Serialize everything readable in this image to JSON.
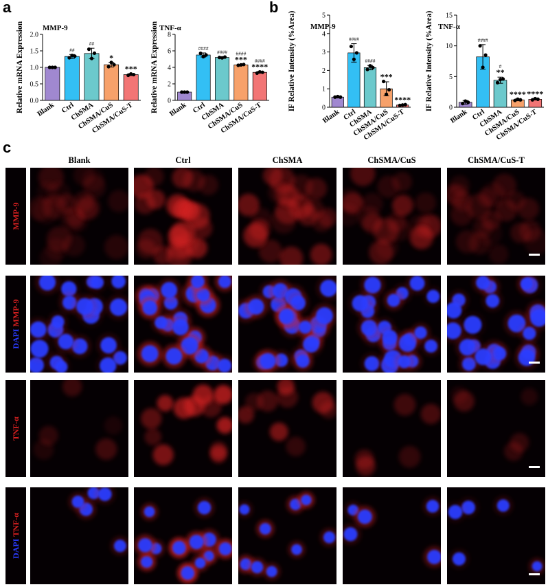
{
  "panel_letters": {
    "a": "a",
    "b": "b",
    "c": "c"
  },
  "colors": {
    "Blank": "#a088d0",
    "Ctrl": "#33bff4",
    "ChSMA": "#6cc9cc",
    "ChSMA/CuS": "#f7a16a",
    "ChSMA/CuS-T": "#f27575",
    "micro_red": "#d62020",
    "micro_blue": "#2a3cff"
  },
  "chart_data": [
    {
      "type": "bar",
      "panel": "a",
      "title": "MMP-9",
      "ylabel": "Relative mRNA Expression",
      "categories": [
        "Blank",
        "Ctrl",
        "ChSMA",
        "ChSMA/CuS",
        "ChSMA/CuS-T"
      ],
      "values": [
        1.0,
        1.33,
        1.42,
        1.08,
        0.78
      ],
      "errors": [
        0.0,
        0.06,
        0.16,
        0.07,
        0.03
      ],
      "points": [
        [
          1.0,
          1.0,
          1.0
        ],
        [
          1.29,
          1.36,
          1.34
        ],
        [
          1.55,
          1.27,
          1.43
        ],
        [
          1.02,
          1.15,
          1.08
        ],
        [
          0.76,
          0.8,
          0.78
        ]
      ],
      "top_labels": [
        "",
        "",
        "",
        "*",
        "***"
      ],
      "hash_labels": [
        "",
        "##",
        "##",
        "",
        ""
      ],
      "ylim": [
        0,
        2.0
      ],
      "ticks": [
        0.0,
        0.5,
        1.0,
        1.5,
        2.0
      ],
      "tick_labels": [
        "0.0",
        "0.5",
        "1.0",
        "1.5",
        "2.0"
      ]
    },
    {
      "type": "bar",
      "panel": "a",
      "title": "TNF-α",
      "ylabel": "Relative mRNA Expression",
      "categories": [
        "Blank",
        "Ctrl",
        "ChSMA",
        "ChSMA/CuS",
        "ChSMA/CuS-T"
      ],
      "values": [
        1.0,
        5.5,
        5.2,
        4.3,
        3.4
      ],
      "errors": [
        0.0,
        0.25,
        0.1,
        0.06,
        0.1
      ],
      "points": [
        [
          1.0,
          1.0,
          1.0
        ],
        [
          5.7,
          5.3,
          5.5
        ],
        [
          5.2,
          5.15,
          5.25
        ],
        [
          4.25,
          4.3,
          4.35
        ],
        [
          3.3,
          3.45,
          3.4
        ]
      ],
      "top_labels": [
        "",
        "",
        "",
        "***",
        "****"
      ],
      "hash_labels": [
        "",
        "####",
        "####",
        "####",
        "####"
      ],
      "ylim": [
        0,
        8
      ],
      "ticks": [
        0,
        2,
        4,
        6,
        8
      ],
      "tick_labels": [
        "0",
        "2",
        "4",
        "6",
        "8"
      ]
    },
    {
      "type": "bar",
      "panel": "b",
      "title": "MMP-9",
      "ylabel": "IF Relative Intensity (%Area)",
      "categories": [
        "Blank",
        "Ctrl",
        "ChSMA",
        "ChSMA/CuS",
        "ChSMA/CuS-T"
      ],
      "values": [
        0.55,
        2.95,
        2.15,
        1.0,
        0.12
      ],
      "errors": [
        0.05,
        0.5,
        0.12,
        0.38,
        0.03
      ],
      "points": [
        [
          0.55,
          0.58,
          0.55
        ],
        [
          3.3,
          2.6,
          2.95
        ],
        [
          2.05,
          2.25,
          2.15
        ],
        [
          1.4,
          0.7,
          0.95
        ],
        [
          0.1,
          0.12,
          0.14
        ]
      ],
      "top_labels": [
        "",
        "",
        "",
        "***",
        "****"
      ],
      "hash_labels": [
        "",
        "####",
        "####",
        "",
        ""
      ],
      "ylim": [
        0,
        5
      ],
      "ticks": [
        0,
        1,
        2,
        3,
        4,
        5
      ],
      "tick_labels": [
        "0",
        "1",
        "2",
        "3",
        "4",
        "5"
      ]
    },
    {
      "type": "bar",
      "panel": "b",
      "title": "TNF-α",
      "ylabel": "IF Relative Intensity (%Area)",
      "categories": [
        "Blank",
        "Ctrl",
        "ChSMA",
        "ChSMA/CuS",
        "ChSMA/CuS-T"
      ],
      "values": [
        0.8,
        8.2,
        4.4,
        1.2,
        1.3
      ],
      "errors": [
        0.3,
        2.0,
        0.5,
        0.15,
        0.1
      ],
      "points": [
        [
          0.6,
          1.0,
          0.8
        ],
        [
          10.0,
          6.5,
          8.5
        ],
        [
          4.0,
          4.5,
          4.6
        ],
        [
          1.1,
          1.3,
          1.2
        ],
        [
          1.2,
          1.4,
          1.3
        ]
      ],
      "top_labels": [
        "",
        "",
        "**",
        "****",
        "****"
      ],
      "hash_labels": [
        "",
        "####",
        "#",
        "",
        ""
      ],
      "ylim": [
        0,
        15
      ],
      "ticks": [
        0,
        5,
        10,
        15
      ],
      "tick_labels": [
        "0",
        "5",
        "10",
        "15"
      ]
    }
  ],
  "micrographs": {
    "columns": [
      "Blank",
      "Ctrl",
      "ChSMA",
      "ChSMA/CuS",
      "ChSMA/CuS-T"
    ],
    "rows": [
      {
        "label": "MMP-9",
        "parts": [
          {
            "text": "MMP-9",
            "color": "red"
          }
        ],
        "merged": false
      },
      {
        "label": "DAPI MMP-9",
        "parts": [
          {
            "text": "DAPI",
            "color": "blue"
          },
          {
            "text": " MMP-9",
            "color": "red"
          }
        ],
        "merged": true
      },
      {
        "label": "TNF-α",
        "parts": [
          {
            "text": "TNF-α",
            "color": "red"
          }
        ],
        "merged": false
      },
      {
        "label": "DAPI TNF-α",
        "parts": [
          {
            "text": "DAPI",
            "color": "blue"
          },
          {
            "text": " TNF-α",
            "color": "red"
          }
        ],
        "merged": true
      }
    ]
  }
}
